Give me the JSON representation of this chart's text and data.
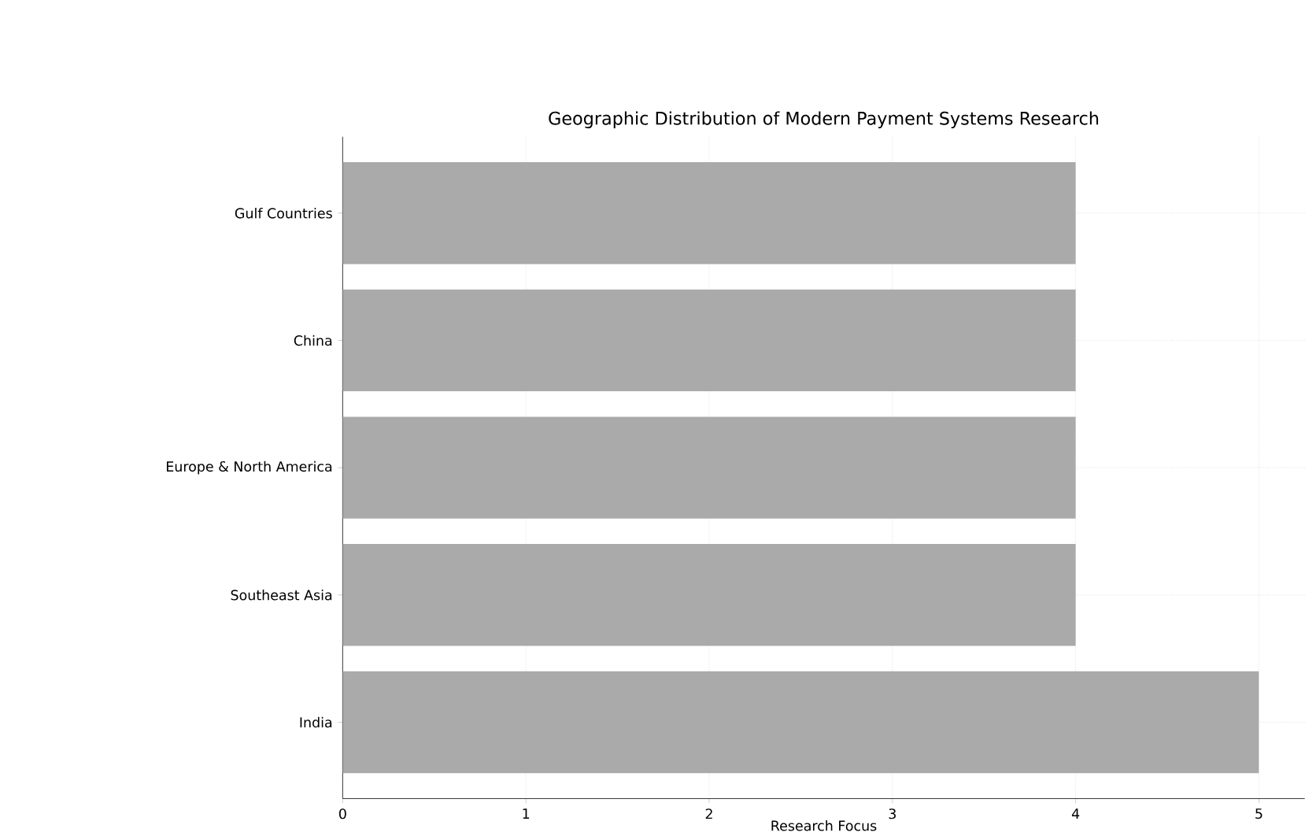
{
  "chart_data": {
    "type": "bar",
    "orientation": "horizontal",
    "title": "Geographic Distribution of Modern Payment Systems Research",
    "xlabel": "Research Focus",
    "categories": [
      "Gulf Countries",
      "China",
      "Europe & North America",
      "Southeast Asia",
      "India"
    ],
    "values": [
      4,
      4,
      4,
      4,
      5
    ],
    "color": "#a9aaa9",
    "xlim": [
      0,
      5.25
    ],
    "xticks": [
      0,
      1,
      2,
      3,
      4,
      5
    ],
    "grid": true
  }
}
